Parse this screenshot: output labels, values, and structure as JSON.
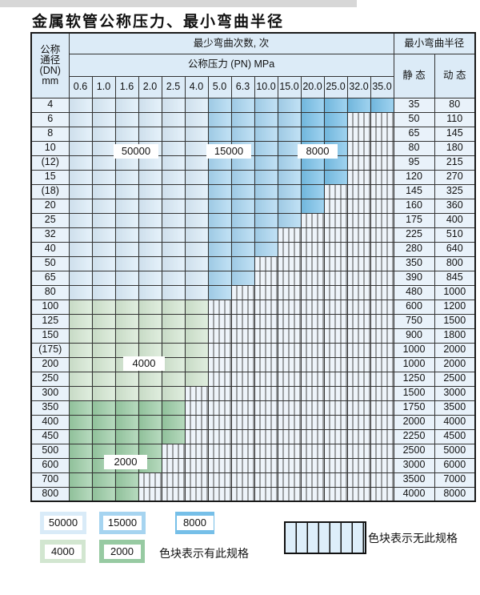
{
  "page": {
    "title": "金属软管公称压力、最小弯曲半径"
  },
  "colors": {
    "blue_light_50000": "#d9ebf8",
    "blue_medium_15000": "#a6d4f0",
    "blue_dark_8000": "#76bfe8",
    "green_light_4000": "#d2e6d0",
    "green_medium_2000": "#97caa2",
    "hatch_background": "#eef4fa",
    "header_background": "#dcebf7",
    "side_background": "#e9f2fa"
  },
  "table": {
    "corner_header": "公称\n通径\n(DN)\nmm",
    "top_header": "最少弯曲次数, 次",
    "radius_header": "最小弯曲半径",
    "pressure_header": "公称压力 (PN) MPa",
    "static_header": "静 态",
    "dynamic_header": "动 态",
    "pressure_columns": [
      "0.6",
      "1.0",
      "1.6",
      "2.0",
      "2.5",
      "4.0",
      "5.0",
      "6.3",
      "10.0",
      "15.0",
      "20.0",
      "25.0",
      "32.0",
      "35.0"
    ],
    "band_rule": {
      "blue": {
        "light_max_col": 5,
        "medium_max_col": 9,
        "dark_max_col": 13
      },
      "light_band_value": "50000",
      "medium_band_value": "15000",
      "dark_band_value": "8000",
      "green_light_value": "4000",
      "green_medium_value": "2000"
    },
    "rows": [
      {
        "dn": "4",
        "static": "35",
        "dynamic": "80",
        "palette": "blue",
        "last_col": 13
      },
      {
        "dn": "6",
        "static": "50",
        "dynamic": "110",
        "palette": "blue",
        "last_col": 11
      },
      {
        "dn": "8",
        "static": "65",
        "dynamic": "145",
        "palette": "blue",
        "last_col": 11
      },
      {
        "dn": "10",
        "static": "80",
        "dynamic": "180",
        "palette": "blue",
        "last_col": 11
      },
      {
        "dn": "(12)",
        "static": "95",
        "dynamic": "215",
        "palette": "blue",
        "last_col": 11
      },
      {
        "dn": "15",
        "static": "120",
        "dynamic": "270",
        "palette": "blue",
        "last_col": 11
      },
      {
        "dn": "(18)",
        "static": "145",
        "dynamic": "325",
        "palette": "blue",
        "last_col": 10
      },
      {
        "dn": "20",
        "static": "160",
        "dynamic": "360",
        "palette": "blue",
        "last_col": 10
      },
      {
        "dn": "25",
        "static": "175",
        "dynamic": "400",
        "palette": "blue",
        "last_col": 9
      },
      {
        "dn": "32",
        "static": "225",
        "dynamic": "510",
        "palette": "blue",
        "last_col": 8
      },
      {
        "dn": "40",
        "static": "280",
        "dynamic": "640",
        "palette": "blue",
        "last_col": 8
      },
      {
        "dn": "50",
        "static": "350",
        "dynamic": "800",
        "palette": "blue",
        "last_col": 7
      },
      {
        "dn": "65",
        "static": "390",
        "dynamic": "845",
        "palette": "blue",
        "last_col": 7
      },
      {
        "dn": "80",
        "static": "480",
        "dynamic": "1000",
        "palette": "blue",
        "last_col": 6
      },
      {
        "dn": "100",
        "static": "600",
        "dynamic": "1200",
        "palette": "green4000",
        "last_col": 5
      },
      {
        "dn": "125",
        "static": "750",
        "dynamic": "1500",
        "palette": "green4000",
        "last_col": 5
      },
      {
        "dn": "150",
        "static": "900",
        "dynamic": "1800",
        "palette": "green4000",
        "last_col": 5
      },
      {
        "dn": "(175)",
        "static": "1000",
        "dynamic": "2000",
        "palette": "green4000",
        "last_col": 5
      },
      {
        "dn": "200",
        "static": "1000",
        "dynamic": "2000",
        "palette": "green4000",
        "last_col": 5
      },
      {
        "dn": "250",
        "static": "1250",
        "dynamic": "2500",
        "palette": "green4000",
        "last_col": 5
      },
      {
        "dn": "300",
        "static": "1500",
        "dynamic": "3000",
        "palette": "green4000",
        "last_col": 4
      },
      {
        "dn": "350",
        "static": "1750",
        "dynamic": "3500",
        "palette": "green2000",
        "last_col": 4
      },
      {
        "dn": "400",
        "static": "2000",
        "dynamic": "4000",
        "palette": "green2000",
        "last_col": 4
      },
      {
        "dn": "450",
        "static": "2250",
        "dynamic": "4500",
        "palette": "green2000",
        "last_col": 4
      },
      {
        "dn": "500",
        "static": "2500",
        "dynamic": "5000",
        "palette": "green2000",
        "last_col": 3
      },
      {
        "dn": "600",
        "static": "3000",
        "dynamic": "6000",
        "palette": "green2000",
        "last_col": 3
      },
      {
        "dn": "700",
        "static": "3500",
        "dynamic": "7000",
        "palette": "green2000",
        "last_col": 2
      },
      {
        "dn": "800",
        "static": "4000",
        "dynamic": "8000",
        "palette": "green2000",
        "last_col": 2
      }
    ],
    "band_labels": {
      "b50000": "50000",
      "b15000": "15000",
      "b8000": "8000",
      "b4000": "4000",
      "b2000": "2000"
    }
  },
  "legend": {
    "swatches": [
      {
        "value": "50000",
        "color": "#d9ebf8"
      },
      {
        "value": "15000",
        "color": "#a6d4f0"
      },
      {
        "value": "8000",
        "color": "#76bfe8"
      },
      {
        "value": "4000",
        "color": "#d2e6d0"
      },
      {
        "value": "2000",
        "color": "#97caa2"
      }
    ],
    "spec_note": "色块表示有此规格",
    "no_spec_note": "色块表示无此规格"
  }
}
